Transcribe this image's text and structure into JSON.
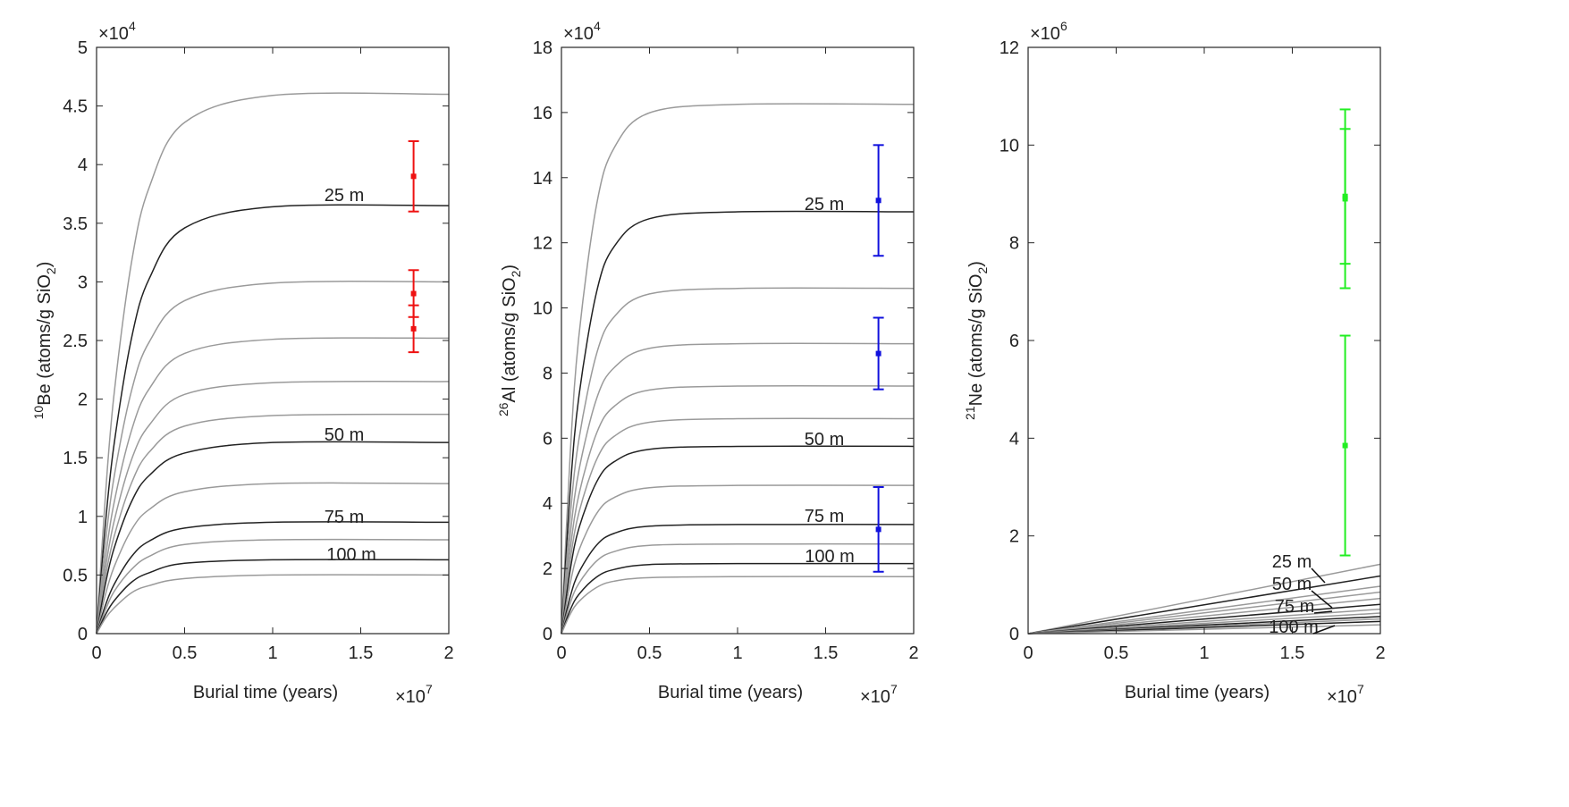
{
  "chart_data": [
    {
      "type": "line",
      "ylabel": [
        "10",
        "Be (atoms/g SiO",
        "2",
        ")"
      ],
      "xlabel": "Burial time (years)",
      "y_multiplier": [
        "×10",
        "4"
      ],
      "x_multiplier": [
        "×10",
        "7"
      ],
      "xlim": [
        0,
        2
      ],
      "xticks": [
        0,
        0.5,
        1,
        1.5,
        2
      ],
      "ylim": [
        0,
        5
      ],
      "yticks": [
        0,
        0.5,
        1,
        1.5,
        2,
        2.5,
        3,
        3.5,
        4,
        4.5,
        5
      ],
      "x": [
        0,
        0.05,
        0.1,
        0.2,
        0.3,
        0.5,
        1,
        2
      ],
      "series": [
        {
          "color": "#9a9a9a",
          "values": [
            0,
            1.17,
            2.05,
            3.18,
            3.81,
            4.36,
            4.59,
            4.6
          ]
        },
        {
          "color": "#222222",
          "values": [
            0,
            0.93,
            1.62,
            2.53,
            3.03,
            3.46,
            3.64,
            3.65
          ]
        },
        {
          "color": "#9a9a9a",
          "values": [
            0,
            0.77,
            1.34,
            2.08,
            2.49,
            2.84,
            2.99,
            3.0
          ]
        },
        {
          "color": "#9a9a9a",
          "values": [
            0,
            0.64,
            1.12,
            1.74,
            2.09,
            2.39,
            2.51,
            2.52
          ]
        },
        {
          "color": "#9a9a9a",
          "values": [
            0,
            0.55,
            0.96,
            1.49,
            1.78,
            2.04,
            2.14,
            2.15
          ]
        },
        {
          "color": "#9a9a9a",
          "values": [
            0,
            0.48,
            0.83,
            1.29,
            1.55,
            1.77,
            1.86,
            1.87
          ]
        },
        {
          "color": "#222222",
          "values": [
            0,
            0.42,
            0.73,
            1.13,
            1.35,
            1.54,
            1.63,
            1.63
          ]
        },
        {
          "color": "#9a9a9a",
          "values": [
            0,
            0.33,
            0.57,
            0.89,
            1.06,
            1.21,
            1.28,
            1.28
          ]
        },
        {
          "color": "#222222",
          "values": [
            0,
            0.24,
            0.42,
            0.66,
            0.79,
            0.9,
            0.95,
            0.95
          ]
        },
        {
          "color": "#9a9a9a",
          "values": [
            0,
            0.2,
            0.36,
            0.55,
            0.66,
            0.76,
            0.8,
            0.8
          ]
        },
        {
          "color": "#222222",
          "values": [
            0,
            0.16,
            0.28,
            0.44,
            0.52,
            0.6,
            0.63,
            0.63
          ]
        },
        {
          "color": "#9a9a9a",
          "values": [
            0,
            0.13,
            0.22,
            0.35,
            0.41,
            0.47,
            0.5,
            0.5
          ]
        }
      ],
      "samples": {
        "color": "#ee1111",
        "x": [
          1.8,
          1.8,
          1.8
        ],
        "values": [
          3.9,
          2.9,
          2.6
        ],
        "errors": [
          0.3,
          0.2,
          0.2
        ]
      },
      "annotations": [
        "25 m",
        "50 m",
        "75 m",
        "100 m"
      ]
    },
    {
      "type": "line",
      "ylabel": [
        "26",
        "Al (atoms/g SiO",
        "2",
        ")"
      ],
      "xlabel": "Burial time (years)",
      "y_multiplier": [
        "×10",
        "4"
      ],
      "x_multiplier": [
        "×10",
        "7"
      ],
      "xlim": [
        0,
        2
      ],
      "xticks": [
        0,
        0.5,
        1,
        1.5,
        2
      ],
      "ylim": [
        0,
        18
      ],
      "yticks": [
        0,
        2,
        4,
        6,
        8,
        10,
        12,
        14,
        16,
        18
      ],
      "x": [
        0,
        0.05,
        0.1,
        0.2,
        0.3,
        0.5,
        1,
        2
      ],
      "series": [
        {
          "color": "#9a9a9a",
          "values": [
            0,
            5.54,
            9.18,
            13.18,
            14.92,
            15.99,
            16.25,
            16.25
          ]
        },
        {
          "color": "#222222",
          "values": [
            0,
            4.42,
            7.32,
            10.5,
            11.89,
            12.74,
            12.95,
            12.95
          ]
        },
        {
          "color": "#9a9a9a",
          "values": [
            0,
            3.61,
            5.99,
            8.6,
            9.73,
            10.43,
            10.6,
            10.6
          ]
        },
        {
          "color": "#9a9a9a",
          "values": [
            0,
            3.03,
            5.03,
            7.22,
            8.17,
            8.76,
            8.9,
            8.9
          ]
        },
        {
          "color": "#9a9a9a",
          "values": [
            0,
            2.59,
            4.29,
            6.16,
            6.98,
            7.48,
            7.6,
            7.6
          ]
        },
        {
          "color": "#9a9a9a",
          "values": [
            0,
            2.25,
            3.73,
            5.35,
            6.06,
            6.49,
            6.6,
            6.6
          ]
        },
        {
          "color": "#222222",
          "values": [
            0,
            1.96,
            3.25,
            4.66,
            5.28,
            5.66,
            5.75,
            5.75
          ]
        },
        {
          "color": "#9a9a9a",
          "values": [
            0,
            1.55,
            2.57,
            3.69,
            4.18,
            4.48,
            4.55,
            4.55
          ]
        },
        {
          "color": "#222222",
          "values": [
            0,
            1.14,
            1.89,
            2.72,
            3.08,
            3.3,
            3.35,
            3.35
          ]
        },
        {
          "color": "#9a9a9a",
          "values": [
            0,
            0.94,
            1.55,
            2.23,
            2.52,
            2.71,
            2.75,
            2.75
          ]
        },
        {
          "color": "#222222",
          "values": [
            0,
            0.73,
            1.21,
            1.74,
            1.97,
            2.12,
            2.15,
            2.15
          ]
        },
        {
          "color": "#9a9a9a",
          "values": [
            0,
            0.6,
            0.99,
            1.42,
            1.61,
            1.72,
            1.75,
            1.75
          ]
        }
      ],
      "samples": {
        "color": "#1111dd",
        "x": [
          1.8,
          1.8,
          1.8
        ],
        "values": [
          13.3,
          8.6,
          3.2
        ],
        "errors": [
          1.7,
          1.1,
          1.3
        ]
      },
      "annotations": [
        "25 m",
        "50 m",
        "75 m",
        "100 m"
      ]
    },
    {
      "type": "line",
      "ylabel": [
        "21",
        "Ne (atoms/g SiO",
        "2",
        ")"
      ],
      "xlabel": "Burial time (years)",
      "y_multiplier": [
        "×10",
        "6"
      ],
      "x_multiplier": [
        "×10",
        "7"
      ],
      "xlim": [
        0,
        2
      ],
      "xticks": [
        0,
        0.5,
        1,
        1.5,
        2
      ],
      "ylim": [
        0,
        12
      ],
      "yticks": [
        0,
        2,
        4,
        6,
        8,
        10,
        12
      ],
      "x": [
        0,
        2
      ],
      "series": [
        {
          "color": "#9a9a9a",
          "values": [
            0,
            1.42
          ]
        },
        {
          "color": "#222222",
          "values": [
            0,
            1.18
          ]
        },
        {
          "color": "#9a9a9a",
          "values": [
            0,
            0.97
          ]
        },
        {
          "color": "#9a9a9a",
          "values": [
            0,
            0.85
          ]
        },
        {
          "color": "#9a9a9a",
          "values": [
            0,
            0.72
          ]
        },
        {
          "color": "#222222",
          "values": [
            0,
            0.6
          ]
        },
        {
          "color": "#9a9a9a",
          "values": [
            0,
            0.5
          ]
        },
        {
          "color": "#9a9a9a",
          "values": [
            0,
            0.42
          ]
        },
        {
          "color": "#222222",
          "values": [
            0,
            0.35
          ]
        },
        {
          "color": "#9a9a9a",
          "values": [
            0,
            0.3
          ]
        },
        {
          "color": "#222222",
          "values": [
            0,
            0.25
          ]
        },
        {
          "color": "#9a9a9a",
          "values": [
            0,
            0.18
          ]
        }
      ],
      "samples": {
        "color": "#22ee22",
        "x": [
          1.8,
          1.8,
          1.8
        ],
        "values": [
          8.95,
          8.9,
          3.85
        ],
        "errors": [
          1.38,
          1.83,
          2.25
        ]
      },
      "annotations": [
        "25 m",
        "50 m",
        "75 m",
        "100 m"
      ]
    }
  ]
}
